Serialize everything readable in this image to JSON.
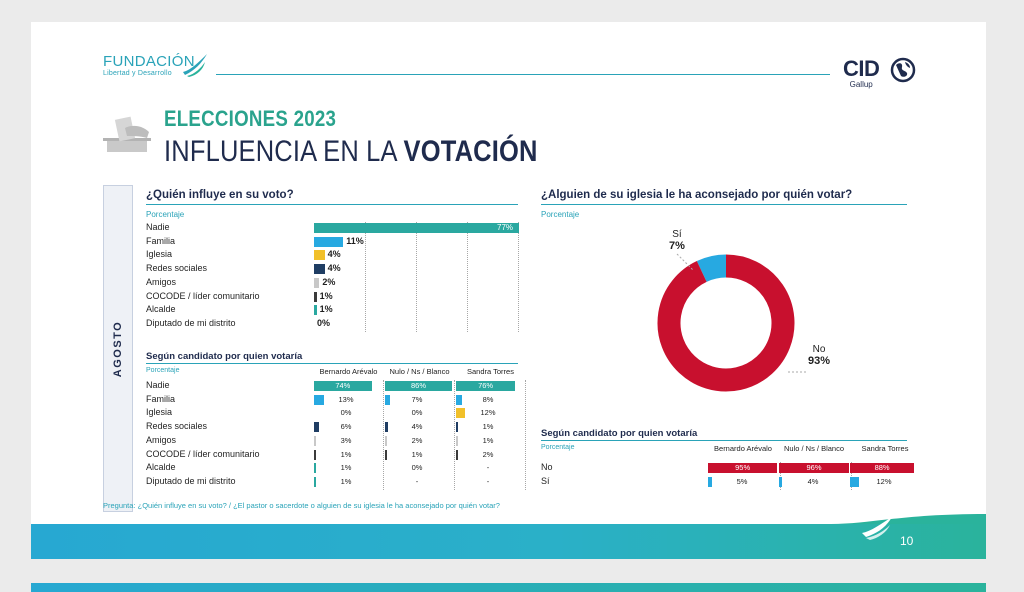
{
  "header": {
    "brand_line1": "FUNDACIÓN",
    "brand_line2": "Libertad y Desarrollo",
    "partner_name": "CID",
    "partner_sub": "Gallup",
    "title_line1": "ELECCIONES 2023",
    "title_line2_light": "INFLUENCIA EN LA ",
    "title_line2_bold": "VOTACIÓN",
    "period_tab": "AGOSTO"
  },
  "colors": {
    "teal": "#2aa38d",
    "teal_bar": "#2aa8a0",
    "blue": "#27a9e1",
    "yellow": "#f1c02a",
    "navy": "#1f3d63",
    "gray": "#c8c8c8",
    "dark": "#3b3b3b",
    "red": "#c8102e"
  },
  "footer": {
    "question": "Pregunta: ¿Quién influye en su voto? / ¿El pastor o sacerdote o alguien de su iglesia le ha aconsejado por quién votar?",
    "page_number": "10"
  },
  "chart_data": [
    {
      "type": "bar",
      "orientation": "horizontal",
      "title": "¿Quién influye en su voto?",
      "subtitle": "Porcentaje",
      "categories": [
        "Nadie",
        "Familia",
        "Iglesia",
        "Redes sociales",
        "Amigos",
        "COCODE / líder comunitario",
        "Alcalde",
        "Diputado de mi distrito"
      ],
      "values": [
        77,
        11,
        4,
        4,
        2,
        1,
        1,
        0
      ],
      "labels": [
        "77%",
        "11%",
        "4%",
        "4%",
        "2%",
        "1%",
        "1%",
        "0%"
      ],
      "colors": [
        "#2aa8a0",
        "#27a9e1",
        "#f1c02a",
        "#1f3d63",
        "#c8c8c8",
        "#3b3b3b",
        "#2aa8a0",
        "#2aa8a0"
      ],
      "xlim": [
        0,
        77
      ]
    },
    {
      "type": "bar",
      "orientation": "horizontal",
      "title": "Según candidato por quien votaría",
      "subtitle": "Porcentaje",
      "categories": [
        "Nadie",
        "Familia",
        "Iglesia",
        "Redes sociales",
        "Amigos",
        "COCODE / líder comunitario",
        "Alcalde",
        "Diputado de mi distrito"
      ],
      "colors": [
        "#2aa8a0",
        "#27a9e1",
        "#f1c02a",
        "#1f3d63",
        "#c8c8c8",
        "#3b3b3b",
        "#2aa8a0",
        "#2aa8a0"
      ],
      "series": [
        {
          "name": "Bernardo Arévalo",
          "values": [
            74,
            13,
            0,
            6,
            3,
            1,
            1,
            1
          ],
          "labels": [
            "74%",
            "13%",
            "0%",
            "6%",
            "3%",
            "1%",
            "1%",
            "1%"
          ]
        },
        {
          "name": "Nulo / Ns / Blanco",
          "values": [
            86,
            7,
            0,
            4,
            2,
            1,
            0,
            null
          ],
          "labels": [
            "86%",
            "7%",
            "0%",
            "4%",
            "2%",
            "1%",
            "0%",
            "-"
          ]
        },
        {
          "name": "Sandra Torres",
          "values": [
            76,
            8,
            12,
            1,
            1,
            2,
            null,
            null
          ],
          "labels": [
            "76%",
            "8%",
            "12%",
            "1%",
            "1%",
            "2%",
            "-",
            "-"
          ]
        }
      ]
    },
    {
      "type": "pie",
      "donut": true,
      "title": "¿Alguien de su iglesia le ha aconsejado por quién votar?",
      "subtitle": "Porcentaje",
      "categories": [
        "No",
        "Sí"
      ],
      "values": [
        93,
        7
      ],
      "labels": [
        "93%",
        "7%"
      ],
      "colors": [
        "#c8102e",
        "#27a9e1"
      ]
    },
    {
      "type": "bar",
      "orientation": "horizontal",
      "title": "Según candidato por quien votaría",
      "subtitle": "Porcentaje",
      "categories": [
        "No",
        "Sí"
      ],
      "colors": [
        "#c8102e",
        "#27a9e1"
      ],
      "series": [
        {
          "name": "Bernardo Arévalo",
          "values": [
            95,
            5
          ],
          "labels": [
            "95%",
            "5%"
          ]
        },
        {
          "name": "Nulo / Ns / Blanco",
          "values": [
            96,
            4
          ],
          "labels": [
            "96%",
            "4%"
          ]
        },
        {
          "name": "Sandra Torres",
          "values": [
            88,
            12
          ],
          "labels": [
            "88%",
            "12%"
          ]
        }
      ]
    }
  ]
}
